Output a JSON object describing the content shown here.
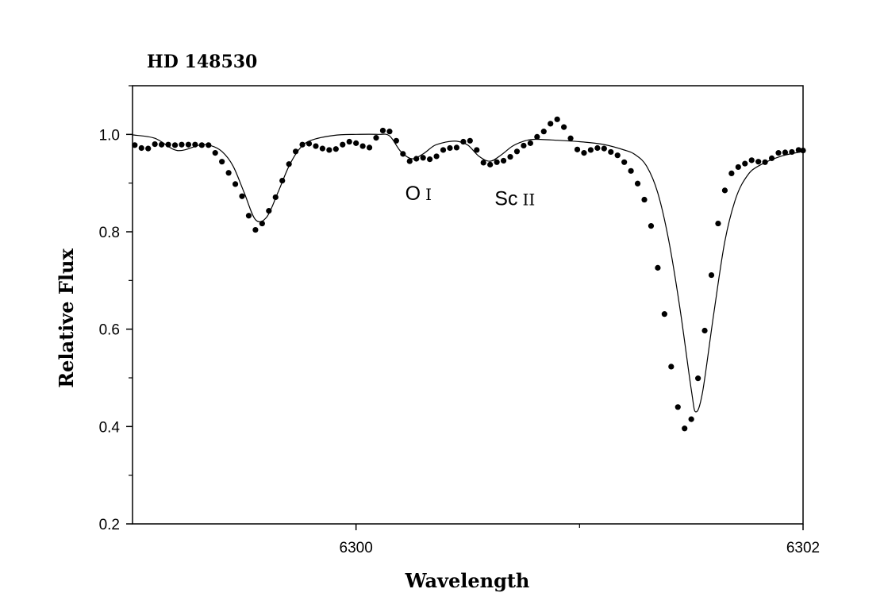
{
  "chart_data": {
    "type": "line",
    "title": "HD 148530",
    "xlabel": "Wavelength",
    "ylabel": "Relative Flux",
    "xlim": [
      6299.0,
      6302.0
    ],
    "ylim": [
      0.2,
      1.1
    ],
    "x_ticks": [
      6300,
      6302
    ],
    "x_minor_ticks": [
      6301
    ],
    "y_ticks": [
      0.2,
      0.4,
      0.6,
      0.8,
      1.0
    ],
    "y_minor_ticks": [
      0.3,
      0.5,
      0.7,
      0.9,
      1.1
    ],
    "grid": false,
    "legend": "none",
    "annotations": [
      {
        "main": "O",
        "roman": "I",
        "x": 6300.22,
        "y": 0.865
      },
      {
        "main": "Sc",
        "roman": "II",
        "x": 6300.62,
        "y": 0.855
      }
    ],
    "series": [
      {
        "style": "points",
        "x": [
          6299.01,
          6299.04,
          6299.07,
          6299.1,
          6299.13,
          6299.16,
          6299.19,
          6299.22,
          6299.25,
          6299.28,
          6299.31,
          6299.34,
          6299.37,
          6299.4,
          6299.43,
          6299.46,
          6299.49,
          6299.52,
          6299.55,
          6299.58,
          6299.61,
          6299.64,
          6299.67,
          6299.7,
          6299.73,
          6299.76,
          6299.79,
          6299.82,
          6299.85,
          6299.88,
          6299.91,
          6299.94,
          6299.97,
          6300.0,
          6300.03,
          6300.06,
          6300.09,
          6300.12,
          6300.15,
          6300.18,
          6300.21,
          6300.24,
          6300.27,
          6300.3,
          6300.33,
          6300.36,
          6300.39,
          6300.42,
          6300.45,
          6300.48,
          6300.51,
          6300.54,
          6300.57,
          6300.6,
          6300.63,
          6300.66,
          6300.69,
          6300.72,
          6300.75,
          6300.78,
          6300.81,
          6300.84,
          6300.87,
          6300.9,
          6300.93,
          6300.96,
          6300.99,
          6301.02,
          6301.05,
          6301.08,
          6301.11,
          6301.14,
          6301.17,
          6301.2,
          6301.23,
          6301.26,
          6301.29,
          6301.32,
          6301.35,
          6301.38,
          6301.41,
          6301.44,
          6301.47,
          6301.5,
          6301.53,
          6301.56,
          6301.59,
          6301.62,
          6301.65,
          6301.68,
          6301.71,
          6301.74,
          6301.77,
          6301.8,
          6301.83,
          6301.86,
          6301.89,
          6301.92,
          6301.95,
          6301.98,
          6302.0
        ],
        "y": [
          0.978,
          0.972,
          0.971,
          0.98,
          0.979,
          0.979,
          0.978,
          0.979,
          0.979,
          0.979,
          0.978,
          0.978,
          0.962,
          0.944,
          0.921,
          0.898,
          0.873,
          0.833,
          0.804,
          0.817,
          0.843,
          0.871,
          0.905,
          0.939,
          0.965,
          0.979,
          0.981,
          0.976,
          0.971,
          0.968,
          0.97,
          0.979,
          0.985,
          0.982,
          0.976,
          0.973,
          0.993,
          1.008,
          1.006,
          0.987,
          0.96,
          0.945,
          0.95,
          0.952,
          0.949,
          0.955,
          0.968,
          0.972,
          0.973,
          0.985,
          0.987,
          0.968,
          0.942,
          0.938,
          0.943,
          0.946,
          0.954,
          0.965,
          0.977,
          0.982,
          0.995,
          1.006,
          1.022,
          1.031,
          1.015,
          0.992,
          0.969,
          0.962,
          0.968,
          0.972,
          0.971,
          0.964,
          0.957,
          0.943,
          0.925,
          0.899,
          0.866,
          0.812,
          0.726,
          0.631,
          0.523,
          0.44,
          0.396,
          0.415,
          0.499,
          0.597,
          0.711,
          0.817,
          0.885,
          0.92,
          0.933,
          0.94,
          0.947,
          0.944,
          0.943,
          0.951,
          0.962,
          0.963,
          0.964,
          0.968,
          0.967
        ]
      },
      {
        "style": "line",
        "x": [
          6299.0,
          6299.1,
          6299.2,
          6299.3,
          6299.35,
          6299.4,
          6299.45,
          6299.5,
          6299.55,
          6299.6,
          6299.65,
          6299.7,
          6299.75,
          6299.8,
          6299.9,
          6300.0,
          6300.1,
          6300.15,
          6300.2,
          6300.25,
          6300.3,
          6300.35,
          6300.4,
          6300.45,
          6300.5,
          6300.55,
          6300.6,
          6300.65,
          6300.7,
          6300.75,
          6300.8,
          6300.9,
          6301.0,
          6301.1,
          6301.2,
          6301.25,
          6301.3,
          6301.35,
          6301.4,
          6301.45,
          6301.5,
          6301.52,
          6301.55,
          6301.6,
          6301.65,
          6301.7,
          6301.75,
          6301.8,
          6301.9,
          6302.0
        ],
        "y": [
          0.999,
          0.992,
          0.967,
          0.978,
          0.977,
          0.965,
          0.935,
          0.88,
          0.825,
          0.83,
          0.88,
          0.935,
          0.972,
          0.988,
          0.998,
          1.0,
          1.0,
          0.997,
          0.965,
          0.95,
          0.96,
          0.977,
          0.984,
          0.986,
          0.978,
          0.955,
          0.945,
          0.958,
          0.976,
          0.986,
          0.99,
          0.988,
          0.985,
          0.98,
          0.968,
          0.958,
          0.935,
          0.88,
          0.78,
          0.64,
          0.475,
          0.43,
          0.47,
          0.63,
          0.78,
          0.87,
          0.915,
          0.935,
          0.955,
          0.965
        ]
      }
    ]
  }
}
